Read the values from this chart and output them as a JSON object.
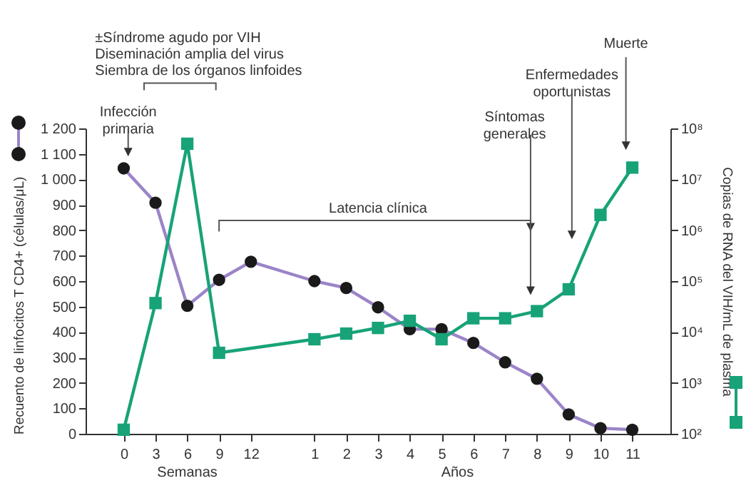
{
  "chart_data": {
    "type": "line",
    "ylabel": "Recuento de linfocitos T CD4+ (células/μL)",
    "y2label": "Copias de RNA del VIH/mL de plasma",
    "categories": [
      "0",
      "3",
      "6",
      "9",
      "12",
      null,
      "1",
      "2",
      "3",
      "4",
      "5",
      "6",
      "7",
      "8",
      "9",
      "10",
      "11"
    ],
    "ylim": [
      0,
      1200
    ],
    "yticks": [
      0,
      100,
      200,
      300,
      400,
      500,
      600,
      700,
      800,
      900,
      {
        "value": 1000,
        "label": "1 000"
      },
      {
        "value": 1100,
        "label": "1 100"
      },
      {
        "value": 1200,
        "label": "1 200"
      }
    ],
    "log": "y2",
    "y2lim": [
      100,
      100000000
    ],
    "y2ticks": [
      {
        "value": 100,
        "label": "10²"
      },
      {
        "value": 1000,
        "label": "10³"
      },
      {
        "value": 10000,
        "label": "10⁴"
      },
      {
        "value": 100000,
        "label": "10⁵"
      },
      {
        "value": 1000000,
        "label": "10⁶"
      },
      {
        "value": 10000000,
        "label": "10⁷"
      },
      {
        "value": 100000000,
        "label": "10⁸"
      }
    ],
    "grid": false,
    "line_style": "solid",
    "series": [
      {
        "color": "#9b84c8",
        "marker": "circle",
        "values": [
          1043,
          908,
          503,
          605,
          676,
          null,
          600,
          573,
          497,
          411,
          411,
          357,
          281,
          216,
          76,
          22,
          16
        ],
        "colors": [
          "#1a1a1a",
          "#1a1a1a",
          "#1a1a1a",
          "#1a1a1a",
          "#1a1a1a",
          null,
          "#1a1a1a",
          "#1a1a1a",
          "#1a1a1a",
          "#1a1a1a",
          "#1a1a1a",
          "#1a1a1a",
          "#1a1a1a",
          "#1a1a1a",
          "#1a1a1a",
          "#1a1a1a",
          "#1a1a1a"
        ]
      },
      {
        "color": "#17a377",
        "marker": "square",
        "axis": "y2",
        "values": [
          120,
          37000,
          50000000,
          3900,
          null,
          null,
          7200,
          9300,
          12000,
          16600,
          7200,
          18600,
          18600,
          25700,
          69000,
          2000000,
          17000000
        ]
      }
    ],
    "annotations": [
      "±Síndrome agudo por VIH",
      "Diseminación amplia del virus",
      "Siembra de los órganos linfoides",
      "Infección primaria",
      "Latencia clínica",
      "Síntomas generales",
      "Enfermedades oportunistas",
      "Muerte",
      "Semanas",
      "Años"
    ]
  }
}
